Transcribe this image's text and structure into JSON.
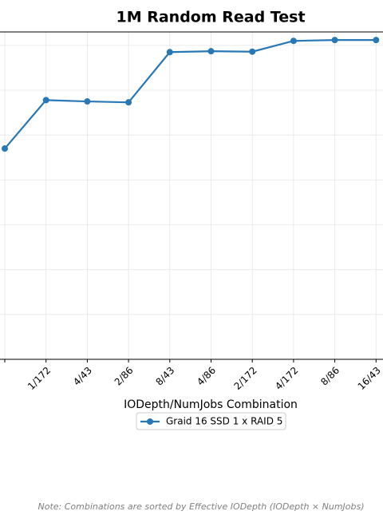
{
  "chart_data": {
    "type": "line",
    "title": "1M Random Read Test",
    "x_label": "IODepth/NumJobs Combination",
    "categories": [
      null,
      "1/172",
      "4/43",
      "2/86",
      "8/43",
      "4/86",
      "2/172",
      "4/172",
      "8/86",
      "16/43"
    ],
    "series": [
      {
        "name": "Graid 16 SSD 1 x RAID 5",
        "color": "#2878b5",
        "values": [
          4.7,
          5.78,
          5.75,
          5.73,
          6.85,
          6.87,
          6.86,
          7.1,
          7.12,
          7.12
        ]
      }
    ],
    "ylim": [
      0,
      7.3
    ],
    "grid": true,
    "legend": "bottom",
    "note": "Note: Combinations are sorted by Effective IODepth (IODepth × NumJobs)"
  }
}
